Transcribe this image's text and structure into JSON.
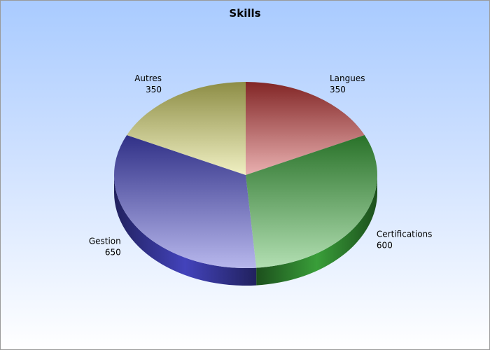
{
  "chart_data": {
    "type": "pie",
    "title": "Skills",
    "slices": [
      {
        "label": "Langues",
        "value": 350,
        "color": "#c83a3a"
      },
      {
        "label": "Certifications",
        "value": 600,
        "color": "#3fb03f"
      },
      {
        "label": "Gestion",
        "value": 650,
        "color": "#4a4ad0"
      },
      {
        "label": "Autres",
        "value": 350,
        "color": "#d9d96a"
      }
    ],
    "start_angle_deg": 0,
    "direction": "clockwise",
    "style": "3d",
    "legend": "none"
  }
}
